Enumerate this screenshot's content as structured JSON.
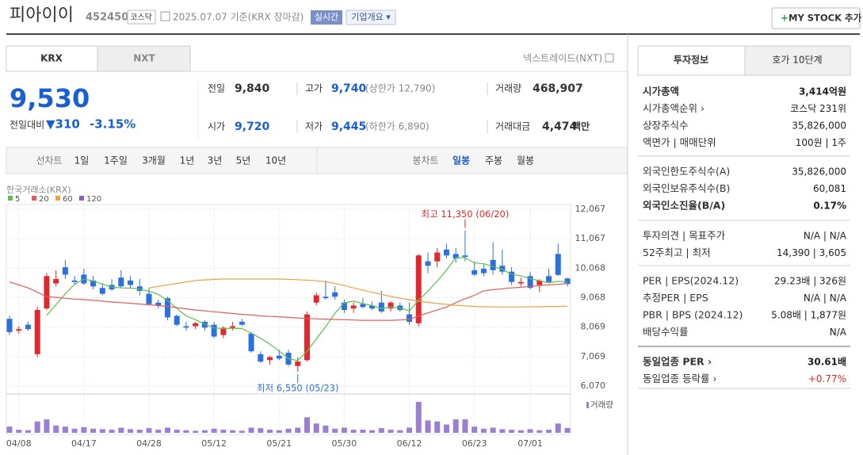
{
  "header": {
    "name": "피아이이",
    "code": "452450",
    "market": "코스닥",
    "date": "2025.07.07 기준(KRX 장마감)",
    "realtime": "실시간",
    "company": "기업개요 ▾",
    "mystock": "MY STOCK 추가"
  },
  "tabs": [
    "KRX",
    "NXT"
  ],
  "nxt_link": "넥스트레이드(NXT)",
  "price": {
    "current": "9,530",
    "change_label": "전일대비",
    "change": "▼310",
    "percent": "-3.15%"
  },
  "stats": [
    {
      "label": "전일",
      "value": "9,840"
    },
    {
      "label": "고가",
      "value": "9,740",
      "extra": "(상한가 12,790)"
    },
    {
      "label": "거래량",
      "value": "468,907"
    },
    {
      "label": "시가",
      "value": "9,720"
    },
    {
      "label": "저가",
      "value": "9,445",
      "extra": "(하한가 6,890)"
    },
    {
      "label": "거래대금",
      "value": "4,474",
      "extra": "백만"
    }
  ],
  "periods": [
    "선차트",
    "1일",
    "1주일",
    "3개월",
    "1년",
    "3년",
    "5년",
    "10년"
  ],
  "candle_periods": [
    "봉차트",
    "일봉",
    "주봉",
    "월봉"
  ],
  "side": {
    "tabs": [
      "투자정보",
      "호가 10단계"
    ],
    "sections": [
      [
        {
          "label": "시가총액",
          "value": "3,414억원"
        },
        {
          "label": "시가총액순위 ›",
          "value": "코스닥 231위"
        },
        {
          "label": "상장주식수",
          "value": "35,826,000"
        },
        {
          "label": "액면가 | 매매단위",
          "value": "100원 | 1주"
        }
      ],
      [
        {
          "label": "외국인한도주식수(A)",
          "value": "35,826,000"
        },
        {
          "label": "외국인보유주식수(B)",
          "value": "60,081"
        },
        {
          "label": "외국인소진율(B/A)",
          "value": "0.17%"
        }
      ],
      [
        {
          "label": "투자의견 | 목표주가",
          "value": "N/A | N/A"
        },
        {
          "label": "52주최고 | 최저",
          "value": "14,390 | 3,605"
        }
      ],
      [
        {
          "label": "PER | EPS(2024.12)",
          "value": "29.23배 | 326원"
        },
        {
          "label": "추정PER | EPS",
          "value": "N/A | N/A"
        },
        {
          "label": "PBR | BPS (2024.12)",
          "value": "5.08배 | 1,877원"
        },
        {
          "label": "배당수익률",
          "value": "N/A"
        }
      ],
      [
        {
          "label": "동일업종 PER ›",
          "value": "30.61배"
        },
        {
          "label": "동일업종 등락률 ›",
          "value": "+0.77%"
        }
      ]
    ]
  },
  "chart_data": {
    "type": "candlestick",
    "exchange": "한국거래소(KRX)",
    "volume_label": "거래량",
    "high_label": "최고 11,350 (06/20)",
    "low_label": "최저 6,550 (05/23)",
    "up_color": "#e0282e",
    "down_color": "#2b6fe0",
    "volume_color": "#9b7fd0",
    "grid": true,
    "ylim": [
      5855,
      12228
    ],
    "yticks": [
      {
        "value": 12067,
        "label": "12,067"
      },
      {
        "value": 11067,
        "label": "11,067"
      },
      {
        "value": 10068,
        "label": "10,068"
      },
      {
        "value": 9068,
        "label": "9,068"
      },
      {
        "value": 8069,
        "label": "8,069"
      },
      {
        "value": 7069,
        "label": "7,069"
      },
      {
        "value": 6070,
        "label": "6,070"
      }
    ],
    "volume_ylim": [
      0,
      3300000
    ],
    "categories": [
      null,
      "04/08",
      null,
      null,
      null,
      null,
      null,
      null,
      "04/17",
      null,
      null,
      null,
      null,
      null,
      null,
      "04/28",
      null,
      null,
      null,
      null,
      null,
      null,
      "05/12",
      null,
      null,
      null,
      null,
      null,
      null,
      "05/21",
      null,
      null,
      null,
      null,
      null,
      null,
      "05/30",
      null,
      null,
      null,
      null,
      null,
      null,
      "06/12",
      null,
      null,
      null,
      null,
      null,
      null,
      "06/23",
      null,
      null,
      null,
      null,
      null,
      "07/01",
      null,
      null,
      null,
      null
    ],
    "open": [
      8350,
      7950,
      8150,
      7150,
      8700,
      9550,
      10100,
      9650,
      9850,
      9650,
      9400,
      9500,
      9750,
      9650,
      9450,
      9200,
      8900,
      9050,
      8450,
      8100,
      8100,
      8250,
      8150,
      7800,
      8050,
      8250,
      7850,
      7150,
      6950,
      7100,
      7200,
      6750,
      6950,
      8900,
      9100,
      9250,
      8900,
      8700,
      8850,
      8800,
      8900,
      8700,
      8800,
      8500,
      8200,
      10300,
      10300,
      10700,
      10550,
      10500,
      10000,
      10050,
      10350,
      10150,
      9950,
      9550,
      9800,
      9500,
      9800,
      10550,
      9720
    ],
    "high": [
      8450,
      8100,
      8250,
      8750,
      9900,
      10000,
      10350,
      9800,
      10050,
      9800,
      9550,
      9700,
      10000,
      9800,
      9700,
      9400,
      9000,
      9100,
      8500,
      8250,
      8250,
      8300,
      8250,
      8100,
      8250,
      8350,
      7900,
      7250,
      7100,
      7300,
      7300,
      7050,
      8600,
      9250,
      9650,
      9450,
      9000,
      8900,
      9050,
      8950,
      9300,
      8950,
      8900,
      8900,
      10550,
      10600,
      10750,
      10900,
      10750,
      11350,
      10300,
      10200,
      10950,
      10700,
      10100,
      9750,
      9950,
      9700,
      10050,
      10900,
      9740
    ],
    "low": [
      7800,
      7850,
      7950,
      7050,
      8650,
      9450,
      9700,
      9500,
      9500,
      9350,
      9150,
      9300,
      9400,
      9400,
      9150,
      8800,
      8700,
      8300,
      8100,
      7950,
      8000,
      7950,
      7700,
      7700,
      7950,
      8100,
      7200,
      6850,
      6800,
      6950,
      6750,
      6550,
      6900,
      8800,
      9000,
      9000,
      8550,
      8550,
      8700,
      8650,
      8550,
      8600,
      8600,
      8150,
      8100,
      9900,
      10100,
      10400,
      10250,
      10300,
      9800,
      9800,
      9850,
      9850,
      9500,
      9450,
      9350,
      9250,
      9550,
      9800,
      9445
    ],
    "close": [
      7900,
      8000,
      8000,
      8650,
      9800,
      9700,
      9850,
      9600,
      9550,
      9450,
      9200,
      9350,
      9450,
      9500,
      9300,
      8850,
      8800,
      8400,
      8150,
      8050,
      8200,
      8050,
      7750,
      8050,
      8100,
      8150,
      7250,
      6900,
      7050,
      7000,
      6800,
      6900,
      8500,
      9150,
      9050,
      9100,
      8650,
      8800,
      8750,
      8700,
      8600,
      8900,
      8650,
      8250,
      10500,
      10150,
      10600,
      10500,
      10400,
      10450,
      9850,
      9900,
      10000,
      9950,
      9600,
      9600,
      9400,
      9650,
      9600,
      9840,
      9530
    ],
    "volume": [
      600000,
      300000,
      250000,
      1100000,
      1300000,
      700000,
      600000,
      400000,
      550000,
      400000,
      350000,
      300000,
      500000,
      350000,
      300000,
      450000,
      300000,
      500000,
      300000,
      250000,
      200000,
      250000,
      400000,
      300000,
      250000,
      200000,
      500000,
      450000,
      300000,
      250000,
      400000,
      500000,
      1500000,
      900000,
      700000,
      400000,
      500000,
      300000,
      300000,
      250000,
      450000,
      300000,
      250000,
      500000,
      3000000,
      1200000,
      1100000,
      800000,
      1300000,
      1300000,
      600000,
      400000,
      500000,
      350000,
      300000,
      250000,
      350000,
      250000,
      300000,
      900000,
      468907
    ],
    "series": [
      {
        "name": "5",
        "color": "#5cbf4a",
        "values": [
          null,
          null,
          null,
          null,
          8470,
          8830,
          9200,
          9520,
          9700,
          9630,
          9530,
          9430,
          9400,
          9390,
          9360,
          9290,
          9180,
          8970,
          8700,
          8450,
          8320,
          8170,
          8040,
          8020,
          8030,
          8020,
          7860,
          7690,
          7490,
          7260,
          7000,
          6930,
          7250,
          7670,
          8080,
          8540,
          8890,
          8950,
          8870,
          8800,
          8700,
          8750,
          8720,
          8620,
          8980,
          9290,
          9630,
          10000,
          10430,
          10420,
          10250,
          10220,
          10120,
          10030,
          9860,
          9810,
          9710,
          9640,
          9570,
          9620,
          9600
        ]
      },
      {
        "name": "20",
        "color": "#e8585a",
        "values": [
          9600,
          9500,
          9400,
          9250,
          9100,
          9080,
          9050,
          9020,
          9000,
          8980,
          8950,
          8920,
          8900,
          8880,
          8850,
          8830,
          8800,
          8770,
          8730,
          8690,
          8650,
          8620,
          8590,
          8560,
          8530,
          8500,
          8480,
          8450,
          8430,
          8420,
          8400,
          8380,
          8360,
          8350,
          8340,
          8330,
          8320,
          8310,
          8300,
          8300,
          8300,
          8300,
          8310,
          8330,
          8450,
          8550,
          8650,
          8750,
          8900,
          9030,
          9150,
          9300,
          9340,
          9370,
          9400,
          9420,
          9450,
          9480,
          9500,
          9520,
          9550
        ]
      },
      {
        "name": "60",
        "color": "#f0a040",
        "values": [
          null,
          null,
          null,
          null,
          null,
          null,
          null,
          null,
          null,
          null,
          null,
          null,
          null,
          null,
          null,
          9400,
          9450,
          9500,
          9550,
          9600,
          9650,
          9670,
          9690,
          9700,
          9700,
          9700,
          9700,
          9700,
          9700,
          9700,
          9690,
          9680,
          9660,
          9640,
          9610,
          9550,
          9480,
          9400,
          9320,
          9250,
          9180,
          9110,
          9050,
          9000,
          8950,
          8910,
          8870,
          8840,
          8810,
          8790,
          8770,
          8760,
          8750,
          8750,
          8750,
          8750,
          8760,
          8760,
          8770,
          8770,
          8780
        ]
      },
      {
        "name": "120",
        "color": "#8e5fc8",
        "values": [
          null,
          null,
          null,
          null,
          null,
          null,
          null,
          null,
          null,
          null,
          null,
          null,
          null,
          null,
          null,
          null,
          null,
          null,
          null,
          null,
          null,
          null,
          null,
          null,
          null,
          null,
          null,
          null,
          null,
          null,
          null,
          null,
          null,
          null,
          null,
          null,
          null,
          null,
          null,
          null,
          null,
          null,
          null,
          null,
          null,
          null,
          null,
          null,
          null,
          null,
          null,
          null,
          null,
          null,
          null,
          null,
          null,
          null,
          null,
          null,
          null
        ]
      }
    ]
  }
}
